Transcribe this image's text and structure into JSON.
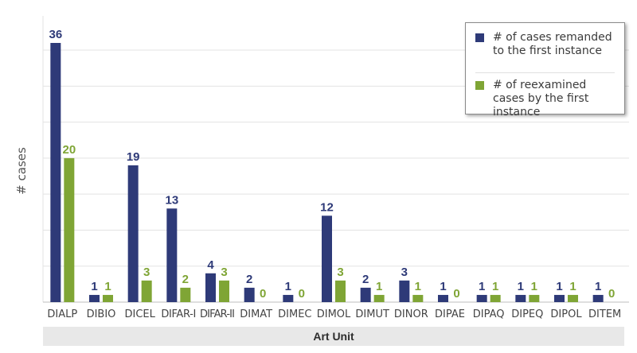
{
  "chart_data": {
    "type": "bar",
    "categories": [
      "DIALP",
      "DIBIO",
      "DICEL",
      "DIFAR-I",
      "DIFAR-II",
      "DIMAT",
      "DIMEC",
      "DIMOL",
      "DIMUT",
      "DINOR",
      "DIPAE",
      "DIPAQ",
      "DIPEQ",
      "DIPOL",
      "DITEM"
    ],
    "series": [
      {
        "name": "# of cases remanded to the first instance",
        "color": "#2e3a78",
        "values": [
          36,
          1,
          19,
          13,
          4,
          2,
          1,
          12,
          2,
          3,
          1,
          1,
          1,
          1,
          1
        ]
      },
      {
        "name": "# of reexamined cases by the first instance",
        "color": "#7fa535",
        "values": [
          20,
          1,
          3,
          2,
          3,
          0,
          0,
          3,
          1,
          1,
          0,
          1,
          1,
          1,
          0
        ]
      }
    ],
    "title": "",
    "xlabel": "Art Unit",
    "ylabel": "# cases",
    "ylim": [
      0,
      36
    ],
    "grid": true,
    "legend_position": "top-right",
    "data_labels": true
  }
}
